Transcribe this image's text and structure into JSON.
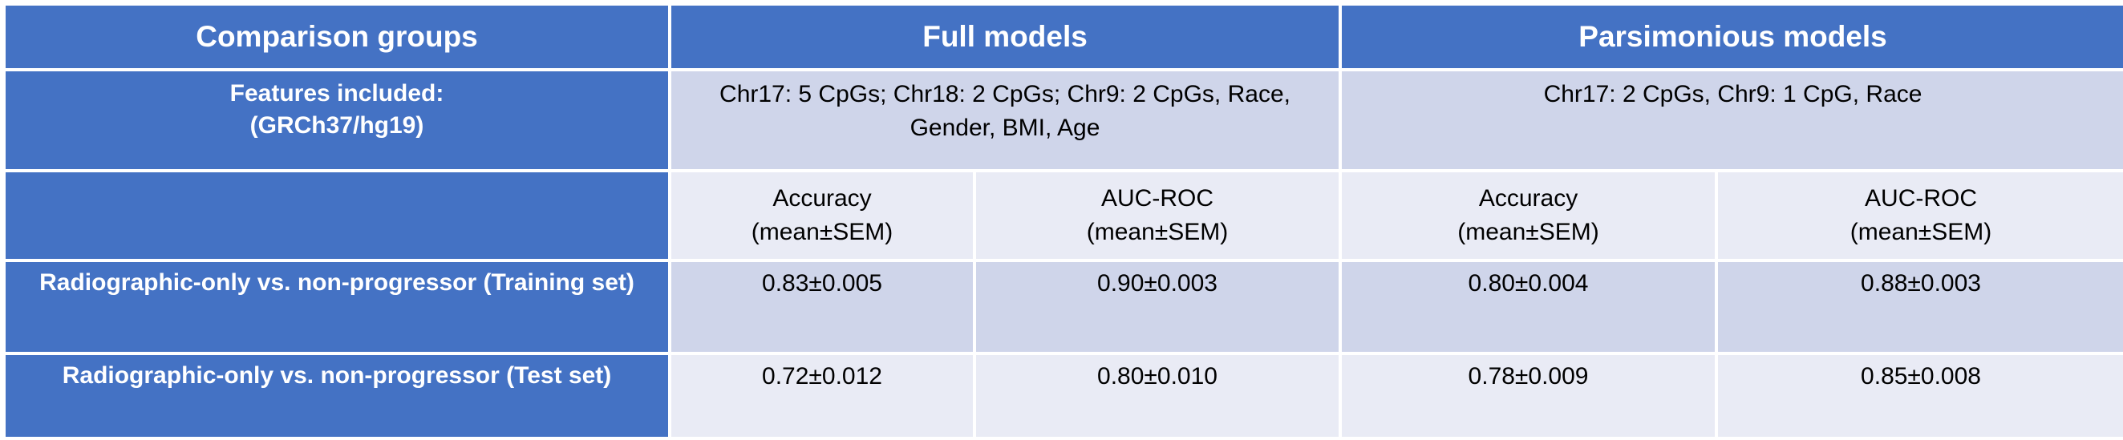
{
  "header": {
    "comparison_groups": "Comparison groups",
    "full_models": "Full models",
    "parsimonious_models": "Parsimonious models"
  },
  "features": {
    "label": "Features included:\n(GRCh37/hg19)",
    "full": "Chr17: 5 CpGs; Chr18: 2 CpGs; Chr9: 2 CpGs, Race,\nGender, BMI, Age",
    "parsimonious": "Chr17: 2 CpGs, Chr9: 1 CpG, Race"
  },
  "metrics": {
    "full_accuracy": "Accuracy\n(mean±SEM)",
    "full_auc": "AUC-ROC\n(mean±SEM)",
    "pars_accuracy": "Accuracy\n(mean±SEM)",
    "pars_auc": "AUC-ROC\n(mean±SEM)"
  },
  "rows": [
    {
      "label": "Radiographic-only vs. non-progressor (Training set)",
      "full_accuracy": "0.83±0.005",
      "full_auc": "0.90±0.003",
      "pars_accuracy": "0.80±0.004",
      "pars_auc": "0.88±0.003"
    },
    {
      "label": "Radiographic-only vs. non-progressor (Test set)",
      "full_accuracy": "0.72±0.012",
      "full_auc": "0.80±0.010",
      "pars_accuracy": "0.78±0.009",
      "pars_auc": "0.85±0.008"
    }
  ],
  "colors": {
    "header_blue": "#4472c4",
    "band_dark": "#cfd5ea",
    "band_light": "#e9ebf5"
  }
}
